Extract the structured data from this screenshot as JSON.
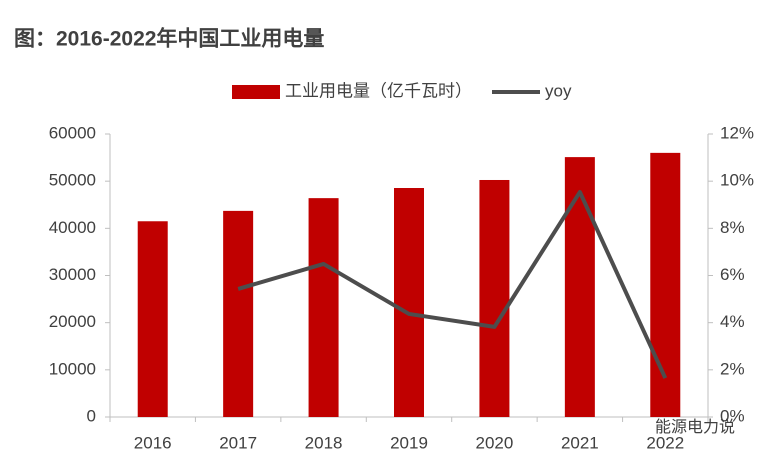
{
  "chart_data": {
    "type": "bar",
    "title": "图：2016-2022年中国工业用电量",
    "categories": [
      "2016",
      "2017",
      "2018",
      "2019",
      "2020",
      "2021",
      "2022"
    ],
    "series": [
      {
        "name": "工业用电量（亿千瓦时）",
        "type": "bar",
        "color": "#c00000",
        "values": [
          41500,
          43700,
          46400,
          48550,
          50250,
          55100,
          56000
        ]
      },
      {
        "name": "yoy",
        "type": "line",
        "axis": "y2",
        "color": "#4d4d4d",
        "values": [
          null,
          5.43,
          6.49,
          4.37,
          3.82,
          9.54,
          1.65
        ]
      }
    ],
    "ylim": [
      0,
      60000
    ],
    "yticks": [
      0,
      10000,
      20000,
      30000,
      40000,
      50000,
      60000
    ],
    "y2lim": [
      0,
      12
    ],
    "y2ticks": [
      {
        "value": 0,
        "label": "0%"
      },
      {
        "value": 2,
        "label": "2%"
      },
      {
        "value": 4,
        "label": "4%"
      },
      {
        "value": 6,
        "label": "6%"
      },
      {
        "value": 8,
        "label": "8%"
      },
      {
        "value": 10,
        "label": "10%"
      },
      {
        "value": 12,
        "label": "12%"
      }
    ],
    "legend": "top",
    "grid": false,
    "annotations": [
      "能源电力说"
    ]
  }
}
